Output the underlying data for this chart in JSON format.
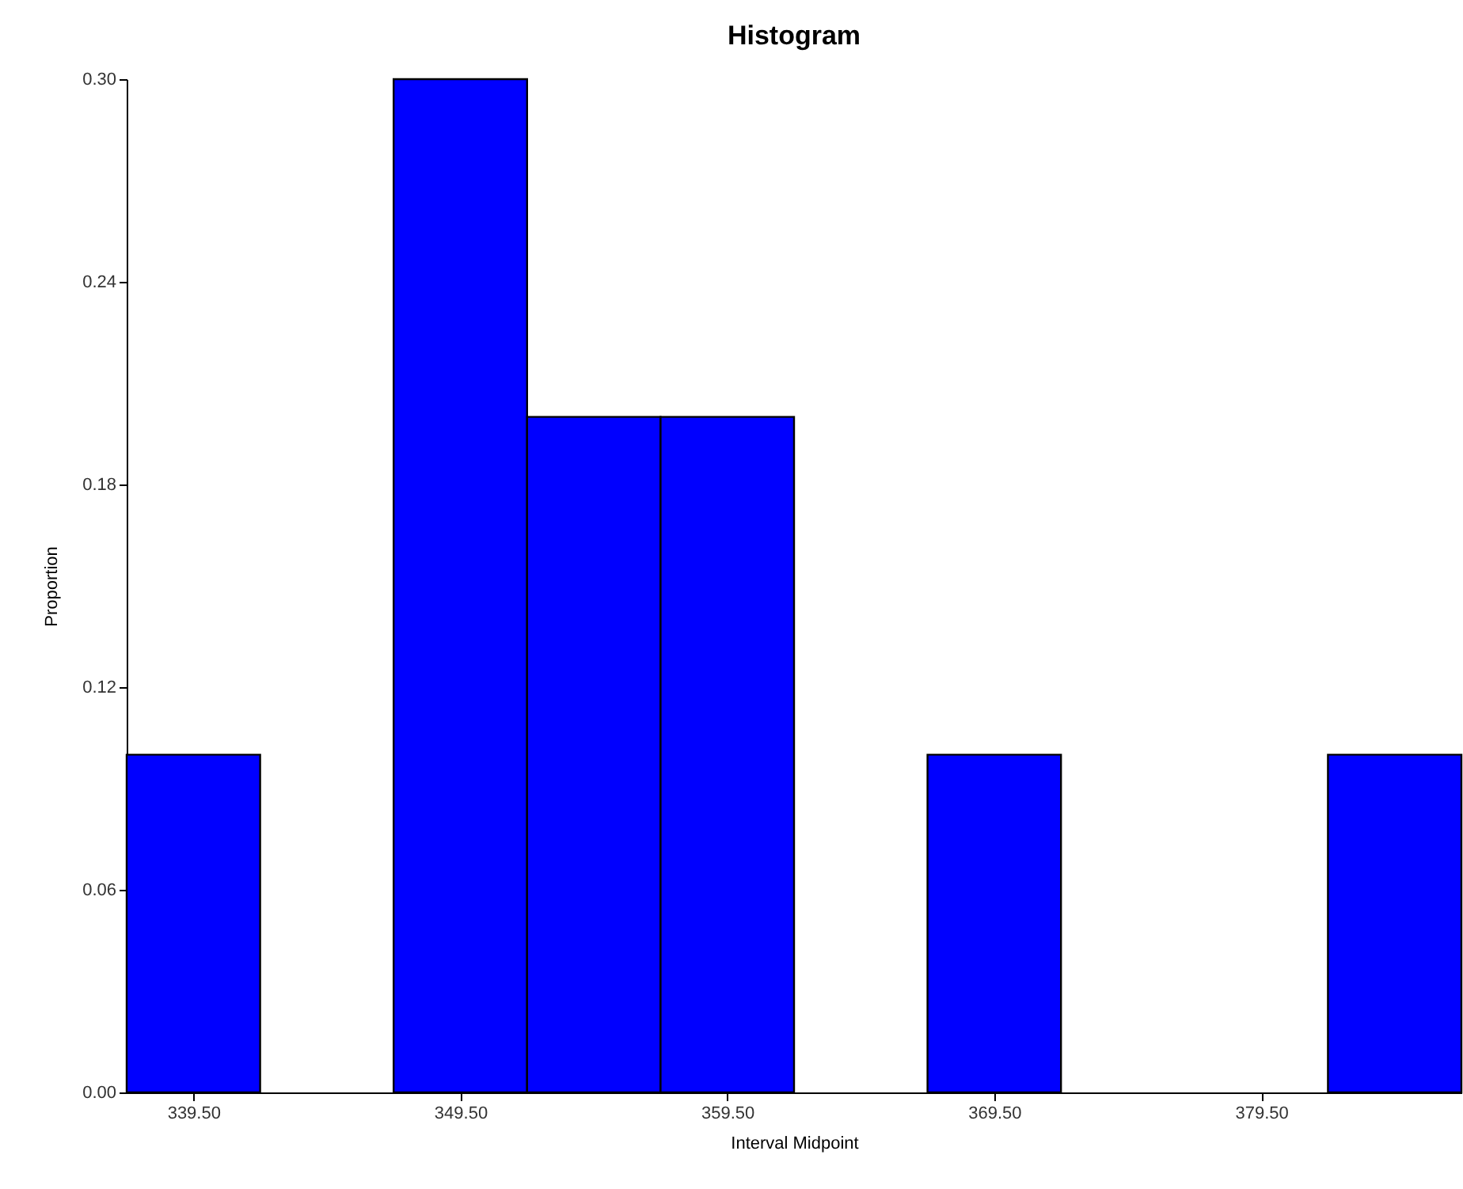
{
  "chart_data": {
    "type": "histogram",
    "title": "Histogram",
    "xlabel": "Interval Midpoint",
    "ylabel": "Proportion",
    "bins": [
      337,
      342,
      347,
      352,
      357,
      362,
      367,
      372,
      377,
      382,
      387
    ],
    "values": [
      0.1,
      0,
      0.3,
      0.2,
      0.2,
      0,
      0.1,
      0,
      0,
      0.1
    ],
    "color": "#0000ff",
    "xlim": [
      337,
      387
    ],
    "xticks": [
      {
        "value": 339.5,
        "label": "339.50"
      },
      {
        "value": 349.5,
        "label": "349.50"
      },
      {
        "value": 359.5,
        "label": "359.50"
      },
      {
        "value": 369.5,
        "label": "369.50"
      },
      {
        "value": 379.5,
        "label": "379.50"
      }
    ],
    "ylim": [
      0,
      0.3
    ],
    "yticks": [
      {
        "value": 0,
        "label": "0.00"
      },
      {
        "value": 0.06,
        "label": "0.06"
      },
      {
        "value": 0.12,
        "label": "0.12"
      },
      {
        "value": 0.18,
        "label": "0.18"
      },
      {
        "value": 0.24,
        "label": "0.24"
      },
      {
        "value": 0.3,
        "label": "0.30"
      }
    ],
    "grid": false
  }
}
